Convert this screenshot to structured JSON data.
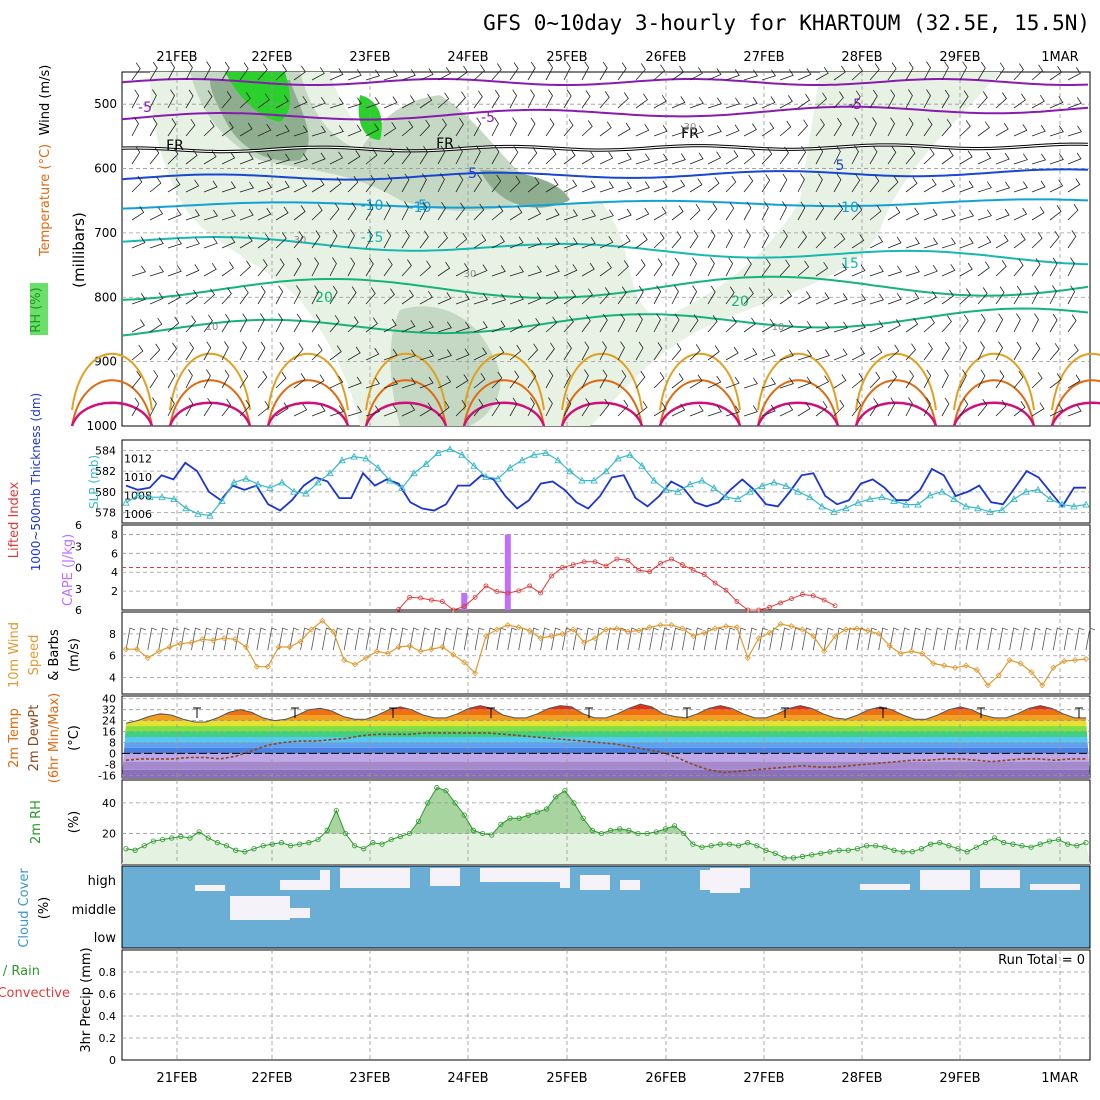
{
  "title": "GFS 0~10day 3-hourly for KHARTOUM (32.5E, 15.5N)",
  "dates": [
    "21FEB",
    "22FEB",
    "23FEB",
    "24FEB",
    "25FEB",
    "26FEB",
    "27FEB",
    "28FEB",
    "29FEB",
    "1MAR"
  ],
  "colors": {
    "rh_green": "#2bd12b",
    "rh_shade": "#a8c7a8",
    "temp_purple": "#8a1bb0",
    "temp_blue": "#1a47cf",
    "temp_cyan": "#12a0d6",
    "temp_teal": "#18b8b0",
    "temp_green": "#17b37a",
    "temp_orange": "#e0a020",
    "temp_dkorange": "#e06a10",
    "temp_magenta": "#d0107a",
    "thick_blue": "#1a35d0",
    "slp_cyan": "#3ab8c8",
    "lifted_red": "#e03a3a",
    "cape_purple": "#c070ff",
    "wind_orange": "#e09a30",
    "rh2m_green": "#2a9a2a",
    "cloud_blue": "#6aaed6",
    "cloud_clear": "#f5f2fa"
  },
  "labels": {
    "p1": {
      "rh": "RH (%)",
      "temp": "Temperature (°C)",
      "wind": "Wind (m/s)",
      "unit": "(millibars)"
    },
    "p2": {
      "thick": "1000~500mb Thickness (dm)",
      "slp": "SLP (mb)"
    },
    "p3": {
      "li": "Lifted Index",
      "cape": "CAPE (J/kg)"
    },
    "p4": {
      "wind": "10m Wind",
      "speed": "Speed",
      "barbs": "& Barbs",
      "unit": "(m/s)"
    },
    "p5": {
      "temp": "2m Temp",
      "dew": "2m DewPt",
      "minmax": "(6hr Min/Max)",
      "unit": "(°C)"
    },
    "p6": {
      "rh": "2m RH",
      "unit": "(%)"
    },
    "p7": {
      "cloud": "Cloud Cover",
      "unit": "(%)",
      "high": "high",
      "middle": "middle",
      "low": "low"
    },
    "p8": {
      "total": "tal / Rain",
      "conv": "Convective",
      "precip": "3hr Precip (mm)",
      "run_total": "Run Total = 0"
    }
  },
  "chart_data": [
    {
      "type": "heatmap",
      "panel": "upper-air",
      "y_axis": {
        "values": [
          500,
          600,
          700,
          800,
          900,
          1000
        ],
        "range": [
          450,
          1000
        ]
      },
      "contour_labels": [
        "-5",
        "-5",
        "-5",
        "FR",
        "FR",
        "FR",
        "-5",
        "-5",
        "5",
        "-10",
        "-10",
        "10",
        "-15",
        "15",
        "20",
        "20",
        "30",
        "30",
        "30",
        "10",
        "10"
      ]
    },
    {
      "type": "line",
      "panel": "thickness-slp",
      "y_left": {
        "ticks": [
          578,
          580,
          582,
          584
        ],
        "range": [
          577,
          585
        ]
      },
      "y_right": {
        "ticks": [
          1006,
          1008,
          1010,
          1012
        ],
        "range": [
          1005,
          1014
        ]
      },
      "series": [
        {
          "values": [
            580.6,
            580.2,
            580.4,
            581.6,
            581.2,
            582.8,
            582,
            580,
            579.2,
            580.6,
            580.2,
            580.6,
            578.8,
            578.2,
            579.2,
            580.6,
            581.4,
            581,
            579.4,
            579.4,
            581.8,
            580.6,
            581.2,
            580.8,
            579,
            578.4,
            578.2,
            578.8,
            580.6,
            580.6,
            581.6,
            581.2,
            579.6,
            578.4,
            579.2,
            580.8,
            581,
            580.2,
            579,
            578.4,
            579.6,
            581.4,
            581.6,
            579.4,
            578.6,
            579.6,
            581,
            580.4,
            579,
            578.6,
            579,
            580.2,
            581.2,
            580.2,
            578.8,
            578.6,
            580,
            581.6,
            581.8,
            579.6,
            578.8,
            579.2,
            580.8,
            581.2,
            580.4,
            579.2,
            579.2,
            580.2,
            582.2,
            581.6,
            579.6,
            580,
            580.6,
            579,
            578.8,
            580.4,
            582,
            581.4,
            580,
            578.6,
            580.4,
            580.4
          ]
        },
        {
          "values": [
            1007.2,
            1008,
            1007.8,
            1007.8,
            1007.6,
            1006.6,
            1006,
            1005.8,
            1007.4,
            1009.4,
            1009.8,
            1009.2,
            1008.8,
            1009.4,
            1008.4,
            1008.2,
            1009.4,
            1010.4,
            1011.8,
            1012.2,
            1012,
            1011,
            1009.6,
            1008.8,
            1010.4,
            1011.4,
            1012.6,
            1013,
            1012.4,
            1011.2,
            1010,
            1009.8,
            1011,
            1011.8,
            1012.4,
            1012.6,
            1011.8,
            1010.6,
            1009.6,
            1009.6,
            1010.6,
            1012,
            1012.4,
            1011.2,
            1009.6,
            1008.6,
            1008.4,
            1009.2,
            1009.6,
            1008.8,
            1007.8,
            1007.6,
            1008.4,
            1009,
            1009.4,
            1009,
            1008.4,
            1007.8,
            1006.8,
            1006.2,
            1006.6,
            1007.2,
            1007.6,
            1007.8,
            1007.4,
            1007,
            1007,
            1008,
            1008.4,
            1007.6,
            1006.8,
            1006.6,
            1006.2,
            1006.4,
            1007.6,
            1008.4,
            1008.6,
            1007.6,
            1007,
            1006.8,
            1007
          ]
        }
      ]
    },
    {
      "type": "bar",
      "panel": "lifted-cape",
      "y_left": {
        "ticks": [
          -6,
          -3,
          0,
          3,
          6
        ],
        "range": [
          -6,
          6
        ]
      },
      "y_right": {
        "ticks": [
          2,
          4,
          6,
          8
        ],
        "range": [
          0,
          9
        ]
      },
      "series": [
        {
          "x": [
            19,
            20,
            21,
            22,
            23,
            24,
            25,
            26,
            27,
            28,
            29,
            30,
            31,
            32,
            33,
            34,
            35,
            36,
            37,
            38,
            39,
            40,
            41,
            42,
            43,
            44,
            45,
            46,
            47,
            48,
            49,
            50,
            51,
            52,
            53,
            54,
            55,
            56,
            57,
            58,
            59
          ],
          "values": [
            5.9,
            4.2,
            4.3,
            4.6,
            4.8,
            6,
            5.5,
            4.2,
            2.6,
            3.4,
            3.6,
            3.3,
            2.6,
            3.6,
            1.2,
            0,
            -0.4,
            -0.8,
            -0.8,
            -0.2,
            -1.2,
            -1,
            0.4,
            0.6,
            -0.6,
            -1.2,
            -0.4,
            0.4,
            1,
            2.2,
            3.2,
            4.8,
            6,
            6,
            5.6,
            5,
            4.4,
            3.8,
            4,
            4.6,
            5.4
          ]
        },
        {
          "x": [
            31,
            35
          ],
          "values": [
            1.8,
            8
          ]
        }
      ]
    },
    {
      "type": "line",
      "panel": "10m-wind",
      "y_axis": {
        "ticks": [
          4,
          6,
          8
        ],
        "range": [
          2.5,
          10
        ]
      },
      "series": [
        {
          "values": [
            6.6,
            6.6,
            5.8,
            6.4,
            6.8,
            7.1,
            7.2,
            7.5,
            7.4,
            7.6,
            7.5,
            6.8,
            5,
            5,
            6.8,
            6.8,
            7.3,
            8.4,
            9.2,
            8.2,
            5.6,
            5.2,
            5.8,
            6.4,
            6.2,
            6.8,
            6.9,
            6.4,
            6.6,
            6.8,
            6.1,
            5.4,
            4.4,
            7.8,
            8.4,
            8.8,
            8.6,
            8.3,
            7.6,
            7.8,
            8,
            8.4,
            7.2,
            7.6,
            8.4,
            8.5,
            8.2,
            8.3,
            8.6,
            8.8,
            8.8,
            8.5,
            7.8,
            8.1,
            8.5,
            8.7,
            8.6,
            5.8,
            7.6,
            8.1,
            8.9,
            8.7,
            8.4,
            7.8,
            6.4,
            7.8,
            8.4,
            8.5,
            8.3,
            8,
            6.9,
            6.2,
            6.4,
            6.2,
            5.3,
            5.1,
            4.9,
            5.1,
            4.7,
            3.3,
            4.2,
            5.6,
            5.3,
            4.5,
            3.3,
            4.9,
            5.5,
            5.6,
            5.7
          ]
        }
      ]
    },
    {
      "type": "area",
      "panel": "2m-temp",
      "y_axis": {
        "ticks": [
          -16,
          -8,
          0,
          8,
          16,
          24,
          32,
          40
        ],
        "range": [
          -18,
          42
        ]
      },
      "series": [
        {
          "values": [
            22,
            24,
            27,
            29,
            28,
            25,
            23,
            23,
            26,
            30,
            32,
            30,
            26,
            24,
            25,
            28,
            32,
            33,
            31,
            27,
            25,
            25,
            28,
            32,
            34,
            32,
            28,
            26,
            26,
            29,
            33,
            35,
            33,
            28,
            26,
            26,
            29,
            33,
            35,
            34,
            29,
            26,
            26,
            29,
            33,
            36,
            34,
            29,
            27,
            26,
            29,
            33,
            35,
            33,
            29,
            26,
            26,
            29,
            33,
            35,
            33,
            29,
            26,
            25,
            28,
            32,
            34,
            32,
            28,
            25,
            25,
            28,
            32,
            34,
            32,
            28,
            26,
            26,
            29,
            33,
            35,
            33,
            29,
            26,
            26
          ]
        },
        {
          "values": [
            -5,
            -4,
            -4,
            -4,
            -3,
            -3,
            -4,
            -2,
            2,
            6,
            8,
            9,
            9,
            10,
            11,
            13,
            14,
            14,
            14,
            15,
            15,
            15,
            15,
            15,
            14,
            13,
            12,
            11,
            10,
            9,
            8,
            7,
            5,
            3,
            1,
            -3,
            -8,
            -12,
            -14,
            -13,
            -12,
            -11,
            -10,
            -9,
            -10,
            -10,
            -9,
            -8,
            -7,
            -6,
            -5,
            -5,
            -4,
            -4,
            -5,
            -6,
            -5,
            -4,
            -4,
            -5,
            -4,
            -4
          ]
        }
      ]
    },
    {
      "type": "area",
      "panel": "2m-rh",
      "y_axis": {
        "ticks": [
          20,
          40
        ],
        "range": [
          0,
          55
        ]
      },
      "series": [
        {
          "values": [
            10,
            9,
            12,
            15,
            16,
            17,
            18,
            17,
            21,
            17,
            14,
            12,
            9,
            8,
            10,
            12,
            13,
            14,
            12,
            13,
            14,
            16,
            22,
            35,
            20,
            12,
            10,
            14,
            13,
            16,
            18,
            20,
            28,
            40,
            50,
            48,
            40,
            32,
            22,
            20,
            19,
            26,
            30,
            30,
            32,
            34,
            36,
            44,
            48,
            40,
            30,
            22,
            20,
            22,
            23,
            22,
            20,
            20,
            21,
            23,
            25,
            20,
            13,
            11,
            12,
            13,
            13,
            12,
            14,
            12,
            9,
            7,
            4,
            4,
            5,
            6,
            7,
            8,
            9,
            9,
            10,
            12,
            12,
            11,
            9,
            8,
            8,
            10,
            13,
            14,
            12,
            10,
            8,
            11,
            14,
            17,
            14,
            13,
            12,
            11,
            13,
            15,
            16,
            13,
            12,
            14
          ]
        }
      ]
    },
    {
      "type": "heatmap",
      "panel": "cloud-cover",
      "rows": [
        "high",
        "middle",
        "low"
      ]
    },
    {
      "type": "bar",
      "panel": "precip",
      "y_axis": {
        "ticks": [
          0,
          0.2,
          0.4,
          0.6,
          0.8
        ],
        "range": [
          0,
          1
        ]
      },
      "series": []
    }
  ]
}
